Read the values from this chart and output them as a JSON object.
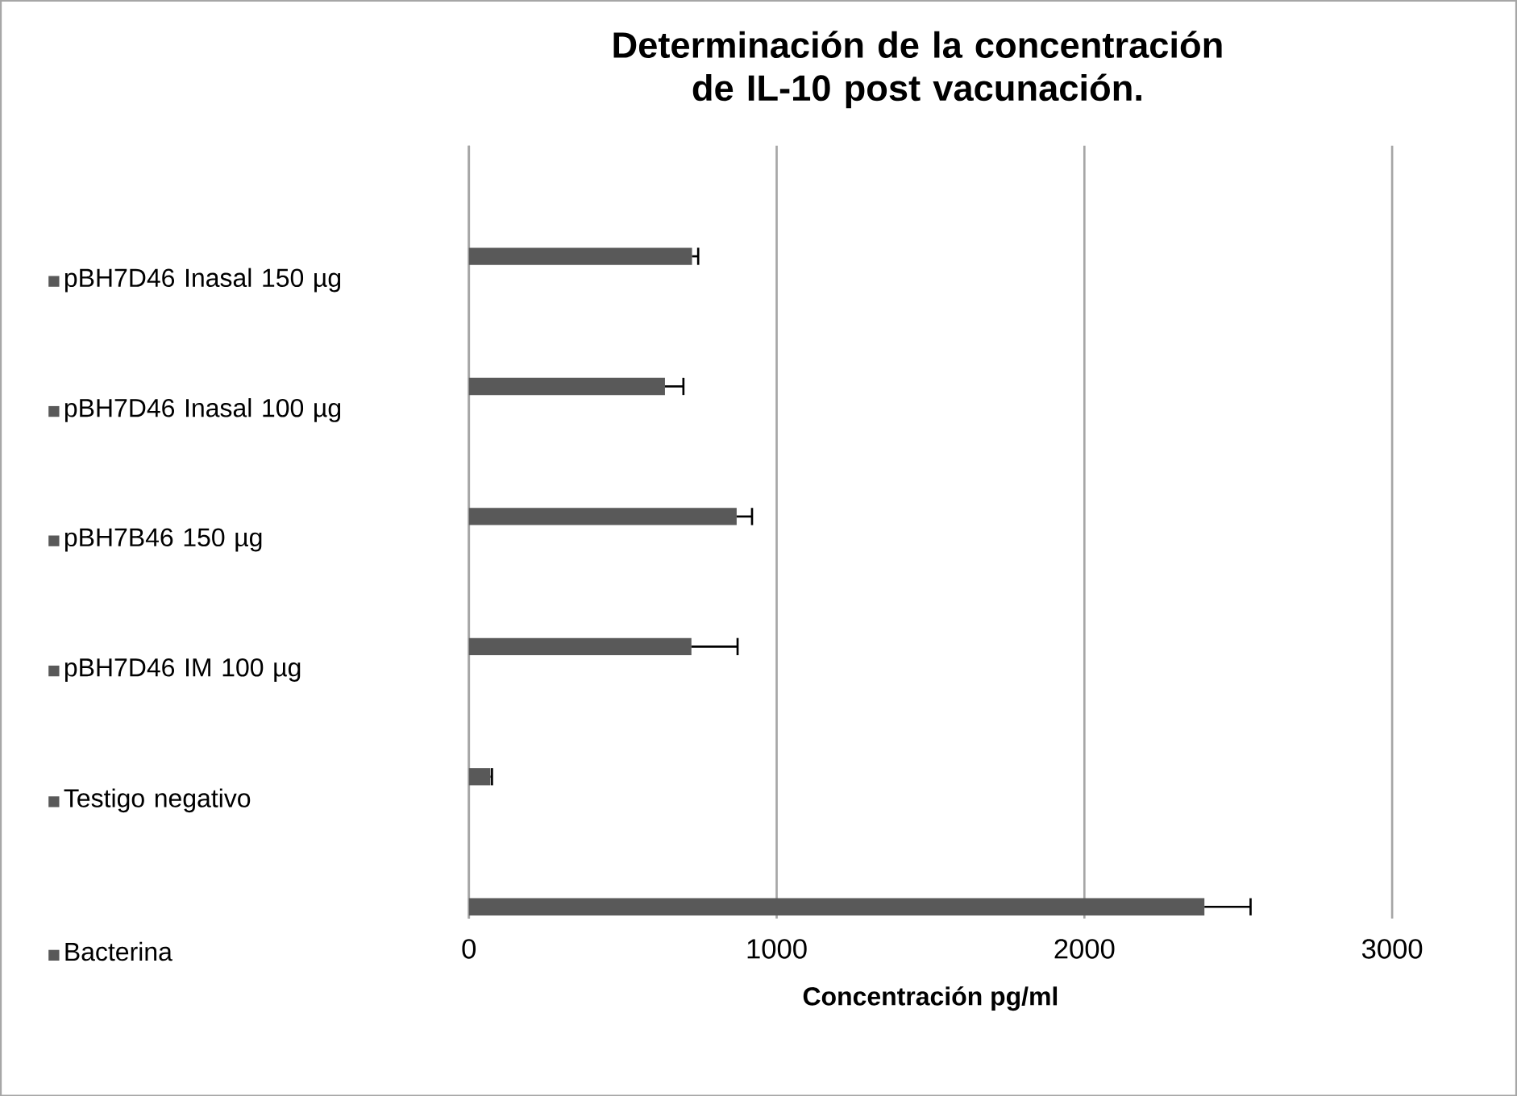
{
  "chart_data": {
    "type": "bar",
    "orientation": "horizontal",
    "title": "Determinación de la concentración  de IL-10 post vacunación.",
    "xlabel": "Concentración pg/ml",
    "categories": [
      null
    ],
    "series": [
      {
        "name": "pBH7D46 Inasal 150 µg",
        "color": "#595959",
        "values": [
          725
        ],
        "errors": [
          20
        ]
      },
      {
        "name": "pBH7D46 Inasal 100 µg",
        "color": "#595959",
        "values": [
          637
        ],
        "errors": [
          60
        ]
      },
      {
        "name": "pBH7B46 150 µg",
        "color": "#595959",
        "values": [
          870
        ],
        "errors": [
          50
        ]
      },
      {
        "name": "pBH7D46 IM  100 µg",
        "color": "#595959",
        "values": [
          723
        ],
        "errors": [
          150
        ]
      },
      {
        "name": "Testigo negativo",
        "color": "#595959",
        "values": [
          70
        ],
        "errors": [
          5
        ]
      },
      {
        "name": "Bacterina",
        "color": "#595959",
        "values": [
          2390
        ],
        "errors": [
          150
        ]
      }
    ],
    "xlim": [
      0,
      3000
    ],
    "xticks": [
      0,
      1000,
      2000,
      3000
    ],
    "grid": "x",
    "legend": "left"
  }
}
